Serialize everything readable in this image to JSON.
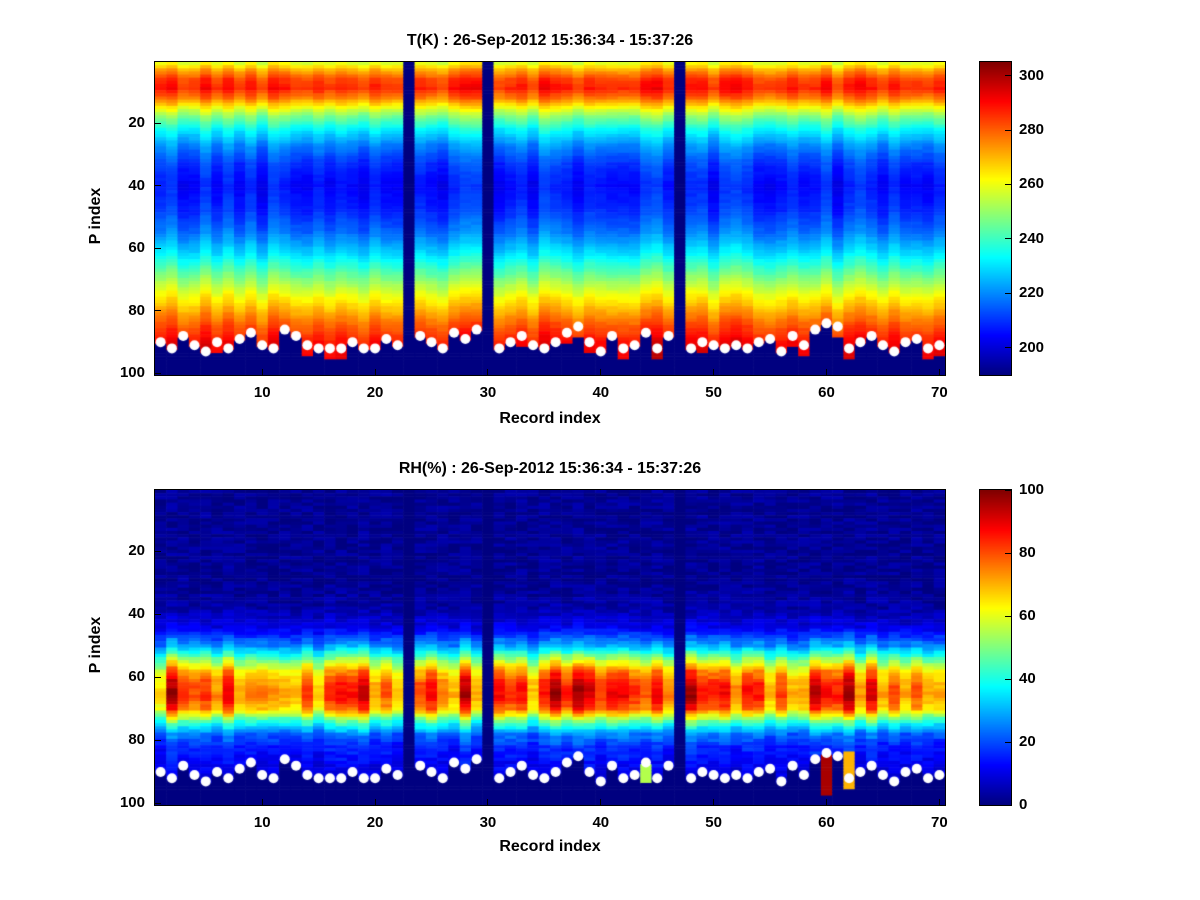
{
  "figure": {
    "background": "#ffffff"
  },
  "chart_data": [
    {
      "type": "heatmap",
      "title": "T(K) : 26-Sep-2012 15:36:34 - 15:37:26",
      "xlabel": "Record index",
      "ylabel": "P index",
      "x_range": [
        1,
        70
      ],
      "y_range": [
        1,
        100
      ],
      "y_direction": "down",
      "x_ticks": [
        10,
        20,
        30,
        40,
        50,
        60,
        70
      ],
      "y_ticks": [
        20,
        40,
        60,
        80,
        100
      ],
      "colormap": "jet",
      "colorbar": {
        "min": 190,
        "max": 305,
        "ticks": [
          200,
          220,
          240,
          260,
          280,
          300
        ]
      },
      "units": "K",
      "profile_p_vs_value": [
        [
          1,
          260
        ],
        [
          3,
          272
        ],
        [
          6,
          284
        ],
        [
          9,
          288
        ],
        [
          12,
          278
        ],
        [
          15,
          262
        ],
        [
          18,
          248
        ],
        [
          22,
          234
        ],
        [
          27,
          221
        ],
        [
          33,
          211
        ],
        [
          40,
          206
        ],
        [
          48,
          210
        ],
        [
          55,
          218
        ],
        [
          62,
          231
        ],
        [
          68,
          245
        ],
        [
          74,
          259
        ],
        [
          80,
          272
        ],
        [
          85,
          282
        ],
        [
          90,
          290
        ],
        [
          96,
          295
        ]
      ],
      "missing_records": [
        23,
        30,
        47
      ],
      "surface_p_index": [
        90,
        92,
        88,
        91,
        93,
        90,
        92,
        89,
        87,
        91,
        92,
        86,
        88,
        91,
        92,
        92,
        92,
        90,
        92,
        92,
        89,
        91,
        null,
        88,
        90,
        92,
        87,
        89,
        86,
        null,
        92,
        90,
        88,
        91,
        92,
        90,
        87,
        85,
        90,
        93,
        88,
        92,
        91,
        87,
        92,
        88,
        null,
        92,
        90,
        91,
        92,
        91,
        92,
        90,
        89,
        93,
        88,
        91,
        86,
        84,
        85,
        92,
        90,
        88,
        91,
        93,
        90,
        89,
        92,
        91
      ],
      "surface_marker": {
        "shape": "circle",
        "color": "#ffffff",
        "radius_px": 5
      },
      "noise": {
        "seed": 42,
        "column_amp": 5,
        "cell_amp": 1.2,
        "mode": "additive"
      },
      "anomalies": []
    },
    {
      "type": "heatmap",
      "title": "RH(%) : 26-Sep-2012 15:36:34 - 15:37:26",
      "xlabel": "Record index",
      "ylabel": "P index",
      "x_range": [
        1,
        70
      ],
      "y_range": [
        1,
        100
      ],
      "y_direction": "down",
      "x_ticks": [
        10,
        20,
        30,
        40,
        50,
        60,
        70
      ],
      "y_ticks": [
        20,
        40,
        60,
        80,
        100
      ],
      "colormap": "jet",
      "colorbar": {
        "min": 0,
        "max": 100,
        "ticks": [
          0,
          20,
          40,
          60,
          80,
          100
        ]
      },
      "units": "%",
      "profile_p_vs_value": [
        [
          1,
          2
        ],
        [
          30,
          2
        ],
        [
          38,
          4
        ],
        [
          44,
          10
        ],
        [
          50,
          28
        ],
        [
          55,
          55
        ],
        [
          58,
          70
        ],
        [
          62,
          80
        ],
        [
          66,
          82
        ],
        [
          70,
          74
        ],
        [
          74,
          45
        ],
        [
          78,
          24
        ],
        [
          82,
          16
        ],
        [
          86,
          13
        ],
        [
          90,
          10
        ],
        [
          96,
          6
        ]
      ],
      "missing_records": [
        23,
        30,
        47
      ],
      "surface_p_index": [
        90,
        92,
        88,
        91,
        93,
        90,
        92,
        89,
        87,
        91,
        92,
        86,
        88,
        91,
        92,
        92,
        92,
        90,
        92,
        92,
        89,
        91,
        null,
        88,
        90,
        92,
        87,
        89,
        86,
        null,
        92,
        90,
        88,
        91,
        92,
        90,
        87,
        85,
        90,
        93,
        88,
        92,
        91,
        87,
        92,
        88,
        null,
        92,
        90,
        91,
        92,
        91,
        92,
        90,
        89,
        93,
        88,
        91,
        86,
        84,
        85,
        92,
        90,
        88,
        91,
        93,
        90,
        89,
        92,
        91
      ],
      "surface_marker": {
        "shape": "circle",
        "color": "#ffffff",
        "radius_px": 5
      },
      "noise": {
        "seed": 7,
        "column_amp": 0.2,
        "cell_amp": 3,
        "mode": "multiplicative"
      },
      "anomalies": [
        {
          "record": 60,
          "p_from": 85,
          "p_to": 97,
          "value": 96
        },
        {
          "record": 62,
          "p_from": 84,
          "p_to": 95,
          "value": 70
        },
        {
          "record": 44,
          "p_from": 88,
          "p_to": 93,
          "value": 55
        }
      ]
    }
  ]
}
